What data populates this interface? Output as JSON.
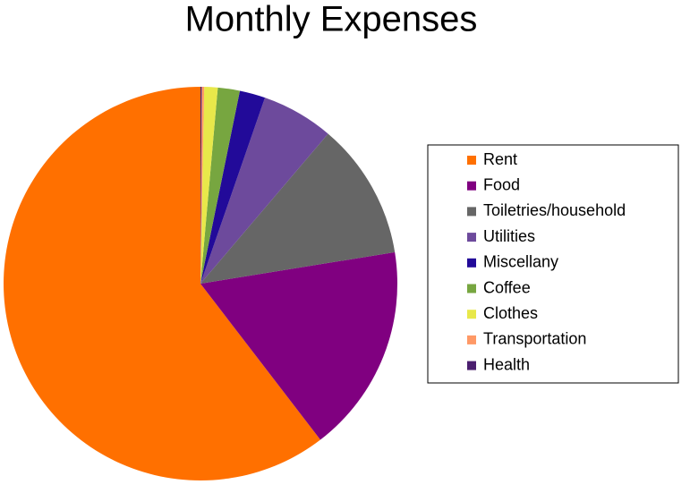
{
  "chart_data": {
    "type": "pie",
    "title": "Monthly Expenses",
    "categories": [
      "Rent",
      "Food",
      "Toiletries/household",
      "Utilities",
      "Miscellany",
      "Coffee",
      "Clothes",
      "Transportation",
      "Health"
    ],
    "values": [
      60.3,
      17.1,
      11.2,
      5.9,
      2.1,
      1.8,
      1.1,
      0.2,
      0.1
    ],
    "colors": [
      "#ff7000",
      "#800080",
      "#666666",
      "#6d4a9c",
      "#220a99",
      "#77a640",
      "#e8e84a",
      "#ff9966",
      "#4b1f6f"
    ],
    "legend": "right"
  }
}
